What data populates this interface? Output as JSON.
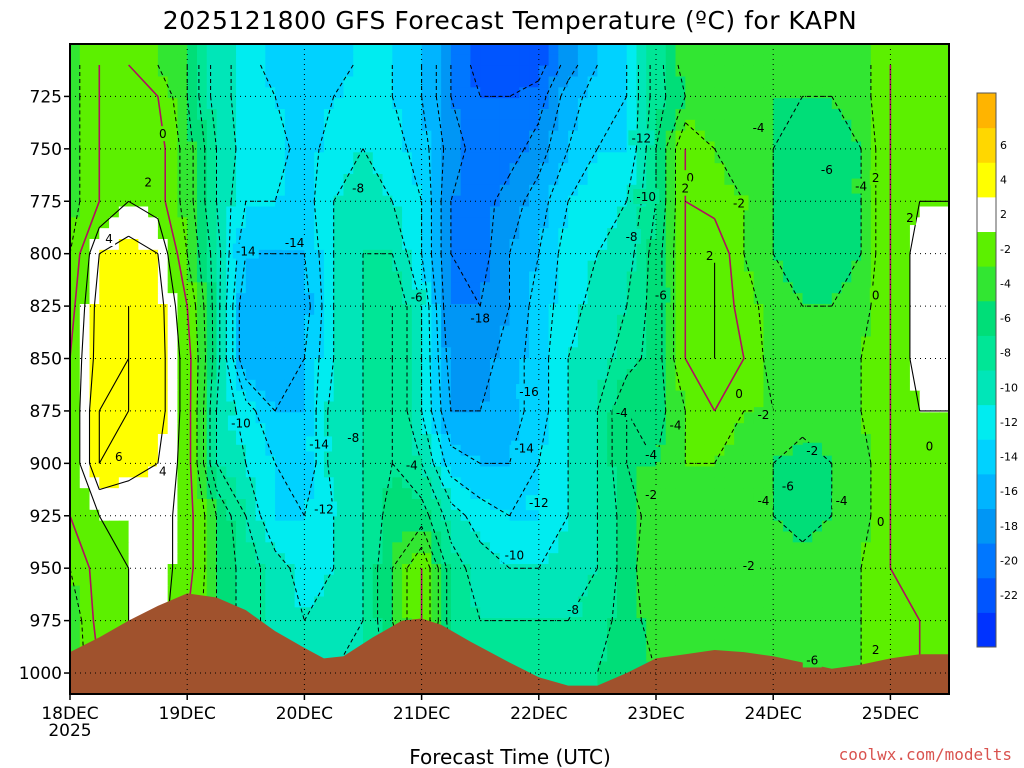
{
  "chart_data": {
    "type": "heatmap",
    "title": "2025121800 GFS Forecast Temperature (ºC) for KAPN",
    "xlabel": "Forecast Time (UTC)",
    "ylabel": "",
    "credit": "coolwx.com/modelts",
    "x_ticks": [
      "18DEC",
      "19DEC",
      "20DEC",
      "21DEC",
      "22DEC",
      "23DEC",
      "24DEC",
      "25DEC"
    ],
    "x_tick_values": [
      0,
      24,
      48,
      72,
      96,
      120,
      144,
      168
    ],
    "x_sublabel": "2025",
    "xlim_hours": [
      0,
      180
    ],
    "y_ticks": [
      725,
      750,
      775,
      800,
      825,
      850,
      875,
      900,
      925,
      950,
      975,
      1000
    ],
    "ylim_hpa": [
      700,
      1010
    ],
    "colorbar": {
      "levels": [
        -24,
        -22,
        -20,
        -18,
        -16,
        -14,
        -12,
        -10,
        -8,
        -6,
        -4,
        -2,
        2,
        4,
        6,
        8
      ],
      "labels": [
        "-22",
        "-20",
        "-18",
        "-16",
        "-14",
        "-12",
        "-10",
        "-8",
        "-6",
        "-4",
        "-2",
        "2",
        "4",
        "6"
      ],
      "label_values": [
        -22,
        -20,
        -18,
        -16,
        -14,
        -12,
        -10,
        -8,
        -6,
        -4,
        -2,
        2,
        4,
        6
      ],
      "colors": [
        "#0033ff",
        "#0055ff",
        "#0077ff",
        "#0096f5",
        "#00b4ff",
        "#00d2ff",
        "#00ecf0",
        "#00e6b8",
        "#00e696",
        "#00de78",
        "#32e632",
        "#5cf000",
        "#ffffff",
        "#ffff00",
        "#ffd700",
        "#ffb400"
      ]
    },
    "temperature_grid": {
      "hours": [
        0,
        6,
        12,
        18,
        24,
        30,
        36,
        42,
        48,
        54,
        60,
        66,
        72,
        78,
        84,
        90,
        96,
        102,
        108,
        114,
        120,
        126,
        132,
        138,
        144,
        150,
        156,
        162,
        168,
        174,
        180
      ],
      "levels_hpa": [
        710,
        725,
        750,
        775,
        800,
        825,
        850,
        875,
        900,
        925,
        950,
        975,
        1000
      ],
      "values": [
        [
          -3,
          0,
          0,
          -2,
          -4,
          -9,
          -11,
          -13,
          -14,
          -14,
          -11,
          -12,
          -14,
          -18,
          -21,
          -22,
          -21,
          -17,
          -14,
          -12,
          -7,
          -3,
          -3,
          -4,
          -4,
          -4,
          -4,
          -3,
          0,
          1,
          1
        ],
        [
          -3,
          0,
          0,
          0,
          -4,
          -9,
          -11,
          -12,
          -13,
          -12,
          -11,
          -12,
          -14,
          -18,
          -20,
          -20,
          -19,
          -15,
          -13,
          -12,
          -7,
          -4,
          -3,
          -4,
          -4,
          -4,
          -4,
          -3,
          0,
          1,
          1
        ],
        [
          -3,
          0,
          1,
          1,
          -3,
          -8,
          -11,
          -11,
          -13,
          -11,
          -10,
          -11,
          -13,
          -17,
          -19,
          -19,
          -17,
          -14,
          -12,
          -12,
          -6,
          0,
          -2,
          -4,
          -4,
          -6,
          -5,
          -4,
          0,
          1,
          1
        ],
        [
          -3,
          0,
          2,
          1,
          -3,
          -8,
          -12,
          -12,
          -13,
          -10,
          -9,
          -10,
          -12,
          -18,
          -19,
          -17,
          -15,
          -12,
          -11,
          -10,
          -6,
          0,
          -1,
          -2,
          -4,
          -6,
          -6,
          -4,
          0,
          2,
          2
        ],
        [
          -2,
          4,
          5,
          4,
          -2,
          -7,
          -14,
          -14,
          -14,
          -10,
          -8,
          -8,
          -12,
          -18,
          -19,
          -16,
          -14,
          -11,
          -10,
          -9,
          -5,
          0,
          2,
          -2,
          -4,
          -5,
          -5,
          -4,
          0,
          3,
          3
        ],
        [
          -1,
          5,
          6,
          5,
          0,
          -7,
          -16,
          -16,
          -15,
          -10,
          -8,
          -6,
          -10,
          -18,
          -18,
          -16,
          -13,
          -11,
          -9,
          -8,
          -5,
          0,
          2,
          -1,
          -3,
          -4,
          -4,
          -3,
          0,
          3,
          3
        ],
        [
          0,
          5,
          6,
          5,
          1,
          -7,
          -16,
          -16,
          -14,
          -10,
          -8,
          -6,
          -10,
          -17,
          -17,
          -15,
          -13,
          -10,
          -9,
          -7,
          -5,
          0,
          2,
          0,
          -3,
          -3,
          -3,
          -2,
          0,
          3,
          3
        ],
        [
          0,
          6,
          6,
          5,
          1,
          -8,
          -11,
          -14,
          -14,
          -9,
          -8,
          -6,
          -10,
          -16,
          -16,
          -15,
          -13,
          -10,
          -8,
          -4,
          -5,
          -2,
          0,
          -2,
          -2,
          -3,
          -3,
          -2,
          0,
          2,
          2
        ],
        [
          0,
          6,
          5,
          4,
          1,
          -8,
          -10,
          -12,
          -14,
          -9,
          -8,
          -6,
          -8,
          -13,
          -14,
          -14,
          -12,
          -10,
          -8,
          -4,
          -4,
          -2,
          -2,
          -3,
          -4,
          -5,
          -4,
          -3,
          0,
          0,
          0
        ],
        [
          0,
          2,
          2,
          3,
          1,
          -4,
          -8,
          -12,
          -12,
          -10,
          -8,
          -5,
          -5,
          -9,
          -11,
          -12,
          -12,
          -10,
          -8,
          -5,
          -3,
          -3,
          -3,
          -4,
          -4,
          -5,
          -4,
          -3,
          0,
          0,
          0
        ],
        [
          -2,
          1,
          2,
          3,
          1,
          -4,
          -7,
          -9,
          -11,
          -10,
          -8,
          -4,
          0,
          -7,
          -9,
          -10,
          -10,
          -9,
          -8,
          -5,
          -2,
          -3,
          -4,
          -4,
          -3,
          -3,
          -3,
          -2,
          0,
          0,
          0
        ],
        [
          -4,
          1,
          2,
          3,
          0,
          -4,
          -7,
          -9,
          -10,
          -9,
          -8,
          -4,
          0,
          -7,
          -8,
          -8,
          -8,
          -8,
          -7,
          -5,
          -3,
          -3,
          -3,
          -3,
          -3,
          -3,
          -3,
          -2,
          -1,
          0,
          0
        ],
        [
          -4,
          0,
          1,
          2,
          0,
          -4,
          -7,
          -8,
          -8,
          -8,
          -8,
          -5,
          -3,
          -6,
          -7,
          -7,
          -7,
          -7,
          -6,
          -5,
          -4,
          -4,
          -4,
          -3,
          -3,
          -3,
          -3,
          -2,
          -1,
          0,
          0
        ]
      ]
    },
    "terrain_hpa": [
      [
        0,
        990
      ],
      [
        6,
        983
      ],
      [
        12,
        975
      ],
      [
        18,
        968
      ],
      [
        24,
        962
      ],
      [
        30,
        964
      ],
      [
        36,
        970
      ],
      [
        42,
        980
      ],
      [
        48,
        988
      ],
      [
        52,
        993
      ],
      [
        56,
        992
      ],
      [
        62,
        983
      ],
      [
        68,
        975
      ],
      [
        72,
        974
      ],
      [
        76,
        977
      ],
      [
        82,
        985
      ],
      [
        90,
        995
      ],
      [
        96,
        1002
      ],
      [
        102,
        1006
      ],
      [
        108,
        1006
      ],
      [
        114,
        1000
      ],
      [
        120,
        993
      ],
      [
        126,
        991
      ],
      [
        132,
        989
      ],
      [
        138,
        990
      ],
      [
        144,
        992
      ],
      [
        150,
        995
      ],
      [
        156,
        998
      ],
      [
        162,
        996
      ],
      [
        168,
        993
      ],
      [
        174,
        991
      ],
      [
        180,
        991
      ]
    ],
    "contour_labels": [
      {
        "text": "0",
        "h": 19,
        "p": 743
      },
      {
        "text": "2",
        "h": 16,
        "p": 766
      },
      {
        "text": "4",
        "h": 8,
        "p": 793
      },
      {
        "text": "6",
        "h": 10,
        "p": 897
      },
      {
        "text": "4",
        "h": 19,
        "p": 904
      },
      {
        "text": "-14",
        "h": 36,
        "p": 799
      },
      {
        "text": "-14",
        "h": 46,
        "p": 795
      },
      {
        "text": "-8",
        "h": 59,
        "p": 769
      },
      {
        "text": "-10",
        "h": 35,
        "p": 881
      },
      {
        "text": "-14",
        "h": 51,
        "p": 891
      },
      {
        "text": "-8",
        "h": 58,
        "p": 888
      },
      {
        "text": "-12",
        "h": 52,
        "p": 922
      },
      {
        "text": "-6",
        "h": 71,
        "p": 821
      },
      {
        "text": "-4",
        "h": 70,
        "p": 901
      },
      {
        "text": "-18",
        "h": 84,
        "p": 831
      },
      {
        "text": "-16",
        "h": 94,
        "p": 866
      },
      {
        "text": "-14",
        "h": 93,
        "p": 893
      },
      {
        "text": "-12",
        "h": 96,
        "p": 919
      },
      {
        "text": "-10",
        "h": 91,
        "p": 944
      },
      {
        "text": "-8",
        "h": 103,
        "p": 970
      },
      {
        "text": "-12",
        "h": 117,
        "p": 745
      },
      {
        "text": "-10",
        "h": 118,
        "p": 773
      },
      {
        "text": "-8",
        "h": 115,
        "p": 792
      },
      {
        "text": "-6",
        "h": 121,
        "p": 820
      },
      {
        "text": "-4",
        "h": 113,
        "p": 876
      },
      {
        "text": "-4",
        "h": 124,
        "p": 882
      },
      {
        "text": "-4",
        "h": 119,
        "p": 896
      },
      {
        "text": "-2",
        "h": 119,
        "p": 915
      },
      {
        "text": "0",
        "h": 127,
        "p": 764
      },
      {
        "text": "2",
        "h": 126,
        "p": 769
      },
      {
        "text": "-2",
        "h": 137,
        "p": 776
      },
      {
        "text": "2",
        "h": 131,
        "p": 801
      },
      {
        "text": "0",
        "h": 137,
        "p": 867
      },
      {
        "text": "-2",
        "h": 142,
        "p": 877
      },
      {
        "text": "-4",
        "h": 141,
        "p": 740
      },
      {
        "text": "-6",
        "h": 155,
        "p": 760
      },
      {
        "text": "-4",
        "h": 162,
        "p": 768
      },
      {
        "text": "2",
        "h": 165,
        "p": 764
      },
      {
        "text": "2",
        "h": 172,
        "p": 783
      },
      {
        "text": "0",
        "h": 165,
        "p": 820
      },
      {
        "text": "0",
        "h": 176,
        "p": 892
      },
      {
        "text": "-2",
        "h": 152,
        "p": 894
      },
      {
        "text": "-6",
        "h": 147,
        "p": 911
      },
      {
        "text": "-4",
        "h": 142,
        "p": 918
      },
      {
        "text": "-4",
        "h": 158,
        "p": 918
      },
      {
        "text": "0",
        "h": 166,
        "p": 928
      },
      {
        "text": "-2",
        "h": 139,
        "p": 949
      },
      {
        "text": "2",
        "h": 165,
        "p": 989
      },
      {
        "text": "-6",
        "h": 152,
        "p": 994
      }
    ]
  }
}
